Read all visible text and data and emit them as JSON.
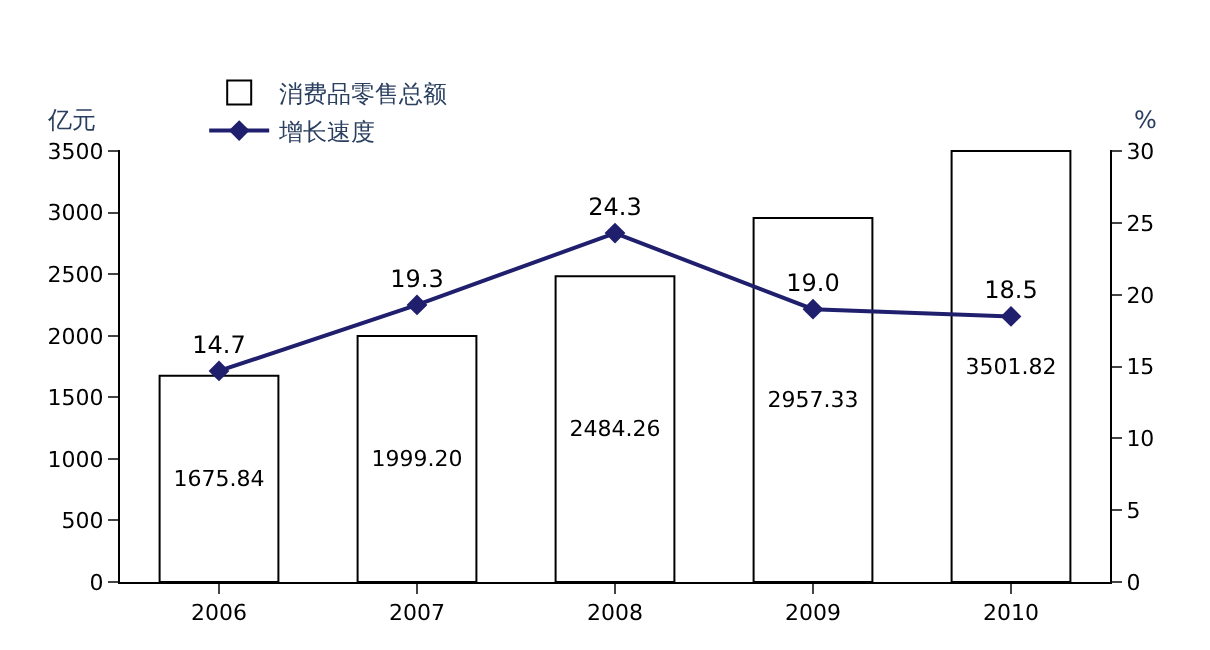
{
  "chart_data": {
    "type": "bar",
    "categories": [
      "2006",
      "2007",
      "2008",
      "2009",
      "2010"
    ],
    "series": [
      {
        "name": "消费品零售总额",
        "color": "#ffffff",
        "values": [
          1675.84,
          1999.2,
          2484.26,
          2957.33,
          3501.82
        ],
        "value_labels": [
          "1675.84",
          "1999.20",
          "2484.26",
          "2957.33",
          "3501.82"
        ]
      },
      {
        "name": "增长速度",
        "type": "line",
        "axis": "y2",
        "color": "#1f1f6e",
        "marker": "diamond",
        "values": [
          14.7,
          19.3,
          24.3,
          19.0,
          18.5
        ],
        "value_labels": [
          "14.7",
          "19.3",
          "24.3",
          "19.0",
          "18.5"
        ]
      }
    ],
    "ylabel": "亿元",
    "y2label": "%",
    "ylim": [
      0,
      3510
    ],
    "yticks": [
      0,
      500,
      1000,
      1500,
      2000,
      2500,
      3000,
      3500
    ],
    "y2lim": [
      0,
      30.09
    ],
    "y2ticks": [
      0,
      5,
      10,
      15,
      20,
      25,
      30
    ],
    "legend": "top left"
  }
}
